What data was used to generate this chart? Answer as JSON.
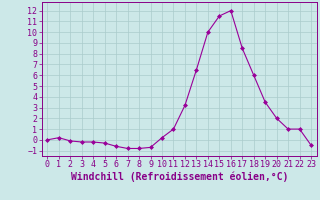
{
  "x": [
    0,
    1,
    2,
    3,
    4,
    5,
    6,
    7,
    8,
    9,
    10,
    11,
    12,
    13,
    14,
    15,
    16,
    17,
    18,
    19,
    20,
    21,
    22,
    23
  ],
  "y": [
    0,
    0.2,
    -0.1,
    -0.2,
    -0.2,
    -0.3,
    -0.6,
    -0.8,
    -0.8,
    -0.7,
    0.2,
    1.0,
    3.2,
    6.5,
    10.0,
    11.5,
    12.0,
    8.5,
    6.0,
    3.5,
    2.0,
    1.0,
    1.0,
    -0.5
  ],
  "line_color": "#990099",
  "marker": "D",
  "marker_size": 2,
  "bg_color": "#cce8e8",
  "grid_color": "#aacccc",
  "xlabel": "Windchill (Refroidissement éolien,°C)",
  "xlabel_fontsize": 7,
  "yticks": [
    -1,
    0,
    1,
    2,
    3,
    4,
    5,
    6,
    7,
    8,
    9,
    10,
    11,
    12
  ],
  "xticks": [
    0,
    1,
    2,
    3,
    4,
    5,
    6,
    7,
    8,
    9,
    10,
    11,
    12,
    13,
    14,
    15,
    16,
    17,
    18,
    19,
    20,
    21,
    22,
    23
  ],
  "ylim": [
    -1.5,
    12.8
  ],
  "xlim": [
    -0.5,
    23.5
  ],
  "tick_fontsize": 6,
  "tick_color": "#880088",
  "line_width": 0.8
}
